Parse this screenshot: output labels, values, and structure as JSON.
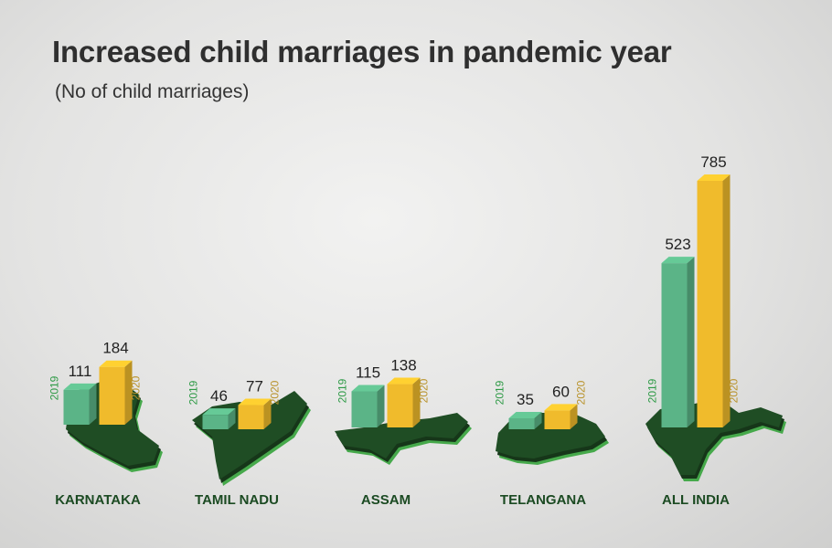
{
  "header": {
    "title": "Increased child marriages in pandemic year",
    "subtitle": "(No of child marriages)"
  },
  "colors": {
    "y2019": "#5bb487",
    "y2020": "#f0bb2c",
    "map": "#1f4d24",
    "map_edge": "#46a94b",
    "value_label": "#222222",
    "category_label": "#1b4a22",
    "year_2019_text": "#2e9a46",
    "year_2020_text": "#b8922a"
  },
  "chart_data": {
    "type": "bar",
    "title": "Increased child marriages in pandemic year",
    "subtitle": "(No of child marriages)",
    "categories": [
      "KARNATAKA",
      "TAMIL NADU",
      "ASSAM",
      "TELANGANA",
      "ALL INDIA"
    ],
    "series": [
      {
        "name": "2019",
        "values": [
          111,
          46,
          115,
          35,
          523
        ]
      },
      {
        "name": "2020",
        "values": [
          184,
          77,
          138,
          60,
          785
        ]
      }
    ],
    "bar_labels": [
      "2019",
      "2020"
    ],
    "grid": false,
    "legend": "none"
  }
}
